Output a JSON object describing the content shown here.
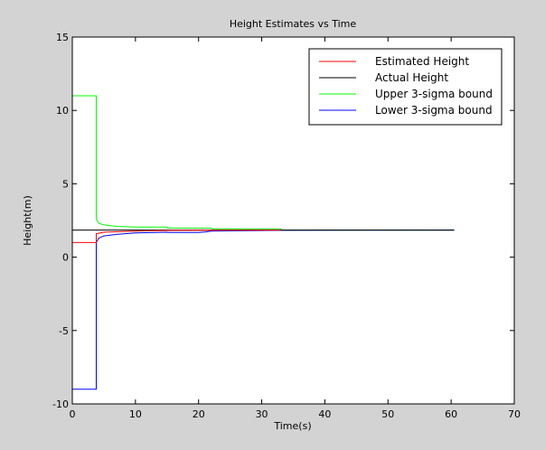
{
  "chart_data": {
    "type": "line",
    "title": "Height Estimates vs Time",
    "xlabel": "Time(s)",
    "ylabel": "Height(m)",
    "xlim": [
      0,
      70
    ],
    "ylim": [
      -10,
      15
    ],
    "xticks": [
      0,
      10,
      20,
      30,
      40,
      50,
      60,
      70
    ],
    "yticks": [
      -10,
      -5,
      0,
      5,
      10,
      15
    ],
    "grid": false,
    "legend_position": "top-right",
    "series": [
      {
        "name": "Estimated Height",
        "color": "#ff0000",
        "x": [
          0,
          3.8,
          3.8,
          5,
          8,
          12,
          16,
          20,
          25,
          33
        ],
        "y": [
          1.0,
          1.0,
          1.6,
          1.7,
          1.75,
          1.8,
          1.82,
          1.83,
          1.84,
          1.85
        ]
      },
      {
        "name": "Actual Height",
        "color": "#000000",
        "x": [
          0,
          60.5
        ],
        "y": [
          1.85,
          1.85
        ]
      },
      {
        "name": "Upper 3-sigma bound",
        "color": "#00ff00",
        "x": [
          0,
          3.8,
          3.8,
          4.2,
          5,
          7,
          10,
          15,
          15.1,
          22,
          22.1,
          33,
          33.1,
          60.5
        ],
        "y": [
          11,
          11,
          2.6,
          2.3,
          2.2,
          2.1,
          2.05,
          2.05,
          1.98,
          1.98,
          1.92,
          1.92,
          1.85,
          1.85
        ]
      },
      {
        "name": "Lower 3-sigma bound",
        "color": "#0000ff",
        "x": [
          0,
          3.8,
          3.8,
          4.2,
          5,
          7,
          10,
          15,
          15.1,
          20,
          21,
          22,
          33,
          60.5
        ],
        "y": [
          -9,
          -9,
          1.0,
          1.3,
          1.45,
          1.55,
          1.65,
          1.7,
          1.68,
          1.68,
          1.72,
          1.78,
          1.83,
          1.85
        ]
      }
    ]
  }
}
